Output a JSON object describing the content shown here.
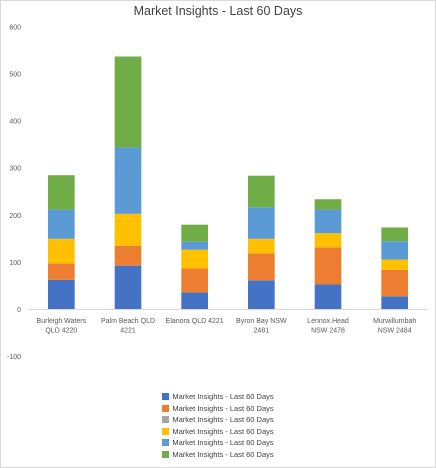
{
  "chart_data": {
    "type": "bar",
    "stacked": true,
    "title": "Market Insights - Last 60 Days",
    "xlabel": "",
    "ylabel": "",
    "ylim": [
      -100,
      600
    ],
    "yticks": [
      -100,
      0,
      100,
      200,
      300,
      400,
      500,
      600
    ],
    "grid": false,
    "legend_position": "bottom",
    "categories": [
      [
        "Burleigh Waters",
        "QLD 4220"
      ],
      [
        "Palm Beach QLD",
        "4221"
      ],
      [
        "Elanora QLD 4221"
      ],
      [
        "Byron Bay NSW",
        "2481"
      ],
      [
        "Lennox Head",
        "NSW 2478"
      ],
      [
        "Murwillumbah",
        "NSW 2484"
      ]
    ],
    "series": [
      {
        "name": "Market Insights - Last 60 Days",
        "color": "#4472c4",
        "values": [
          63,
          93,
          36,
          62,
          53,
          28
        ]
      },
      {
        "name": "Market Insights - Last 60 Days",
        "color": "#ed7d31",
        "values": [
          35,
          42,
          51,
          57,
          79,
          56
        ]
      },
      {
        "name": "Market Insights - Last 60 Days",
        "color": "#a5a5a5",
        "values": [
          0,
          0,
          0,
          0,
          0,
          0
        ]
      },
      {
        "name": "Market Insights - Last 60 Days",
        "color": "#ffc000",
        "values": [
          52,
          68,
          40,
          31,
          30,
          22
        ]
      },
      {
        "name": "Market Insights - Last 60 Days",
        "color": "#5b9bd5",
        "values": [
          62,
          141,
          17,
          67,
          50,
          39
        ]
      },
      {
        "name": "Market Insights - Last 60 Days",
        "color": "#70ad47",
        "values": [
          73,
          193,
          36,
          67,
          22,
          29
        ]
      }
    ]
  }
}
